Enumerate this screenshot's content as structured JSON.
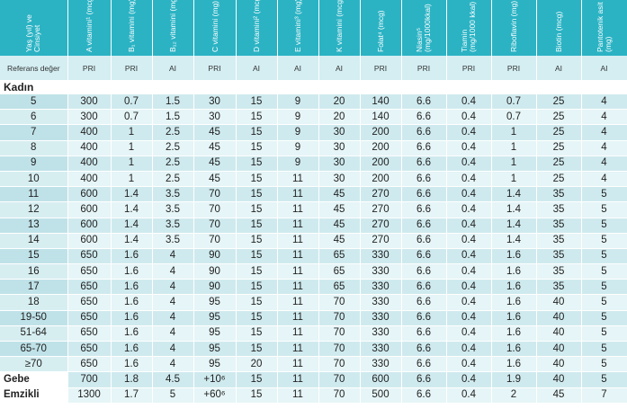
{
  "header": {
    "first": "Yaş (yıl) ve Cinsiyet",
    "cols": [
      "A vitamini¹ (mcg)",
      "B₁ vitamini (mg)",
      "B₁₂ vitamini (mg)",
      "C vitamini (mg)",
      "D vitamini² (mcg)",
      "E vitamini³ (mg)",
      "K vitamini (mcg)",
      "Folat⁴ (mcg)",
      "Niasin⁵ (mg/1000kkal)",
      "Tiamin (mg/1000 kkal)",
      "Riboflavin (mg)",
      "Biotin (mcg)",
      "Pantotenik asit (mg)"
    ]
  },
  "reference": {
    "label": "Referans değer",
    "values": [
      "PRI",
      "PRI",
      "AI",
      "PRI",
      "AI",
      "AI",
      "AI",
      "PRI",
      "PRI",
      "PRI",
      "PRI",
      "AI",
      "AI"
    ]
  },
  "group": "Kadın",
  "rows": [
    {
      "label": "5",
      "v": [
        "300",
        "0.7",
        "1.5",
        "30",
        "15",
        "9",
        "20",
        "140",
        "6.6",
        "0.4",
        "0.7",
        "25",
        "4"
      ]
    },
    {
      "label": "6",
      "v": [
        "300",
        "0.7",
        "1.5",
        "30",
        "15",
        "9",
        "20",
        "140",
        "6.6",
        "0.4",
        "0.7",
        "25",
        "4"
      ]
    },
    {
      "label": "7",
      "v": [
        "400",
        "1",
        "2.5",
        "45",
        "15",
        "9",
        "30",
        "200",
        "6.6",
        "0.4",
        "1",
        "25",
        "4"
      ]
    },
    {
      "label": "8",
      "v": [
        "400",
        "1",
        "2.5",
        "45",
        "15",
        "9",
        "30",
        "200",
        "6.6",
        "0.4",
        "1",
        "25",
        "4"
      ]
    },
    {
      "label": "9",
      "v": [
        "400",
        "1",
        "2.5",
        "45",
        "15",
        "9",
        "30",
        "200",
        "6.6",
        "0.4",
        "1",
        "25",
        "4"
      ]
    },
    {
      "label": "10",
      "v": [
        "400",
        "1",
        "2.5",
        "45",
        "15",
        "11",
        "30",
        "200",
        "6.6",
        "0.4",
        "1",
        "25",
        "4"
      ]
    },
    {
      "label": "11",
      "v": [
        "600",
        "1.4",
        "3.5",
        "70",
        "15",
        "11",
        "45",
        "270",
        "6.6",
        "0.4",
        "1.4",
        "35",
        "5"
      ]
    },
    {
      "label": "12",
      "v": [
        "600",
        "1.4",
        "3.5",
        "70",
        "15",
        "11",
        "45",
        "270",
        "6.6",
        "0.4",
        "1.4",
        "35",
        "5"
      ]
    },
    {
      "label": "13",
      "v": [
        "600",
        "1.4",
        "3.5",
        "70",
        "15",
        "11",
        "45",
        "270",
        "6.6",
        "0.4",
        "1.4",
        "35",
        "5"
      ]
    },
    {
      "label": "14",
      "v": [
        "600",
        "1.4",
        "3.5",
        "70",
        "15",
        "11",
        "45",
        "270",
        "6.6",
        "0.4",
        "1.4",
        "35",
        "5"
      ]
    },
    {
      "label": "15",
      "v": [
        "650",
        "1.6",
        "4",
        "90",
        "15",
        "11",
        "65",
        "330",
        "6.6",
        "0.4",
        "1.6",
        "35",
        "5"
      ]
    },
    {
      "label": "16",
      "v": [
        "650",
        "1.6",
        "4",
        "90",
        "15",
        "11",
        "65",
        "330",
        "6.6",
        "0.4",
        "1.6",
        "35",
        "5"
      ]
    },
    {
      "label": "17",
      "v": [
        "650",
        "1.6",
        "4",
        "90",
        "15",
        "11",
        "65",
        "330",
        "6.6",
        "0.4",
        "1.6",
        "35",
        "5"
      ]
    },
    {
      "label": "18",
      "v": [
        "650",
        "1.6",
        "4",
        "95",
        "15",
        "11",
        "70",
        "330",
        "6.6",
        "0.4",
        "1.6",
        "40",
        "5"
      ]
    },
    {
      "label": "19-50",
      "v": [
        "650",
        "1.6",
        "4",
        "95",
        "15",
        "11",
        "70",
        "330",
        "6.6",
        "0.4",
        "1.6",
        "40",
        "5"
      ]
    },
    {
      "label": "51-64",
      "v": [
        "650",
        "1.6",
        "4",
        "95",
        "15",
        "11",
        "70",
        "330",
        "6.6",
        "0.4",
        "1.6",
        "40",
        "5"
      ]
    },
    {
      "label": "65-70",
      "v": [
        "650",
        "1.6",
        "4",
        "95",
        "15",
        "11",
        "70",
        "330",
        "6.6",
        "0.4",
        "1.6",
        "40",
        "5"
      ]
    },
    {
      "label": "≥70",
      "v": [
        "650",
        "1.6",
        "4",
        "95",
        "20",
        "11",
        "70",
        "330",
        "6.6",
        "0.4",
        "1.6",
        "40",
        "5"
      ]
    },
    {
      "label": "Gebe",
      "bold": true,
      "v": [
        "700",
        "1.8",
        "4.5",
        "+10⁶",
        "15",
        "11",
        "70",
        "600",
        "6.6",
        "0.4",
        "1.9",
        "40",
        "5"
      ]
    },
    {
      "label": "Emzikli",
      "bold": true,
      "v": [
        "1300",
        "1.7",
        "5",
        "+60⁶",
        "15",
        "11",
        "70",
        "500",
        "6.6",
        "0.4",
        "2",
        "45",
        "7"
      ]
    }
  ],
  "colors": {
    "header": "#2bb3c4",
    "ref": "#d4eef2",
    "row_a": "#cfeaee",
    "row_b": "#e6f5f7"
  }
}
